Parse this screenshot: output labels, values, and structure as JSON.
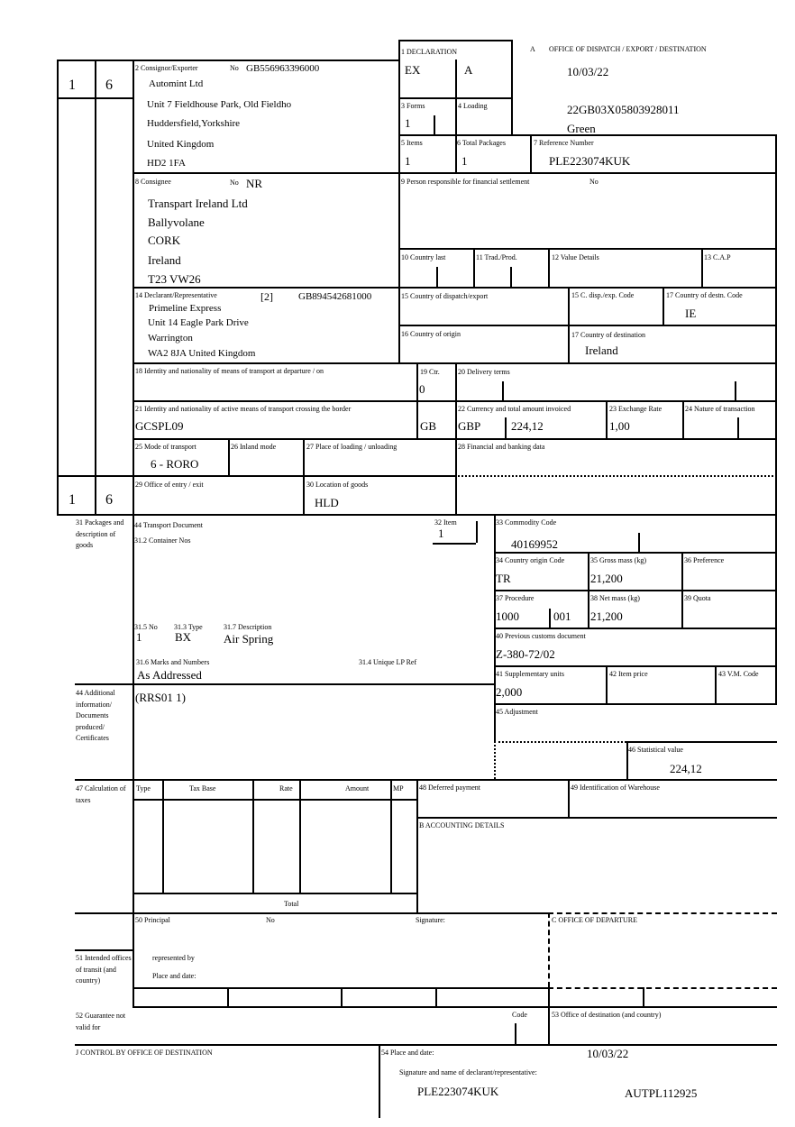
{
  "header": {
    "office_label": "A",
    "office_title": "OFFICE OF DISPATCH / EXPORT / DESTINATION",
    "date": "10/03/22",
    "mrn": "22GB03X05803928011",
    "route": "Green"
  },
  "side": {
    "form_no_1": "1",
    "form_total_1": "6",
    "form_no_2": "1",
    "form_total_2": "6"
  },
  "box1": {
    "label": "1 DECLARATION",
    "type": "EX",
    "subtype": "A"
  },
  "box2": {
    "label": "2 Consignor/Exporter",
    "no_label": "No",
    "no": "GB556963396000",
    "lines": [
      "Automint Ltd",
      "Unit 7 Fieldhouse Park, Old Fieldho",
      "Huddersfield,Yorkshire",
      "United Kingdom",
      "HD2 1FA"
    ]
  },
  "box3": {
    "label": "3 Forms",
    "value": "1"
  },
  "box4": {
    "label": "4 Loading"
  },
  "box5": {
    "label": "5 Items",
    "value": "1"
  },
  "box6": {
    "label": "6 Total Packages",
    "value": "1"
  },
  "box7": {
    "label": "7 Reference Number",
    "value": "PLE223074KUK"
  },
  "box8": {
    "label": "8 Consignee",
    "no_label": "No",
    "no": "NR",
    "lines": [
      "Transpart Ireland Ltd",
      "Ballyvolane",
      "CORK",
      "Ireland",
      "T23 VW26"
    ]
  },
  "box9": {
    "label": "9 Person responsible for financial settlement",
    "no_label": "No"
  },
  "box10": {
    "label": "10 Country last"
  },
  "box11": {
    "label": "11 Trad./Prod."
  },
  "box12": {
    "label": "12 Value Details"
  },
  "box13": {
    "label": "13 C.A.P"
  },
  "box14": {
    "label": "14 Declarant/Representative",
    "status": "[2]",
    "no": "GB894542681000",
    "lines": [
      "Primeline Express",
      "Unit 14 Eagle Park Drive",
      "Warrington",
      "WA2 8JA United Kingdom"
    ]
  },
  "box15": {
    "label": "15 Country of dispatch/export"
  },
  "box15c": {
    "label": "15 C. disp./exp. Code"
  },
  "box17c": {
    "label": "17 Country of destn. Code",
    "value": "IE"
  },
  "box16": {
    "label": "16 Country of origin"
  },
  "box17": {
    "label": "17 Country of destination",
    "value": "Ireland"
  },
  "box18": {
    "label": "18 Identity and nationality of means of transport at departure / on"
  },
  "box19": {
    "label": "19 Ctr.",
    "value": "0"
  },
  "box20": {
    "label": "20 Delivery terms"
  },
  "box21": {
    "label": "21 Identity and nationality of active means of transport crossing the border",
    "value": "GCSPL09",
    "nationality": "GB"
  },
  "box22": {
    "label": "22 Currency and total amount invoiced",
    "currency": "GBP",
    "amount": "224,12"
  },
  "box23": {
    "label": "23 Exchange Rate",
    "value": "1,00"
  },
  "box24": {
    "label": "24 Nature of transaction"
  },
  "box25": {
    "label": "25 Mode of transport",
    "value": "6 - RORO"
  },
  "box26": {
    "label": "26 Inland mode"
  },
  "box27": {
    "label": "27 Place of loading / unloading"
  },
  "box28": {
    "label": "28 Financial and banking data"
  },
  "box29": {
    "label": "29 Office of entry / exit"
  },
  "box30": {
    "label": "30 Location of goods",
    "value": "HLD"
  },
  "box31": {
    "label": "31 Packages and description of goods",
    "transport_doc": "44 Transport Document",
    "container": "31.2 Container Nos",
    "no_label": "31.5 No",
    "no": "1",
    "type_label": "31.3 Type",
    "type": "BX",
    "desc_label": "31.7 Description",
    "desc": "Air Spring",
    "marks_label": "31.6 Marks and Numbers",
    "marks": "As Addressed",
    "lp_label": "31.4 Unique LP Ref"
  },
  "box32": {
    "label": "32 Item",
    "value": "1"
  },
  "box33": {
    "label": "33 Commodity Code",
    "value": "40169952"
  },
  "box34": {
    "label": "34 Country origin Code",
    "value": "TR"
  },
  "box35": {
    "label": "35 Gross mass (kg)",
    "value": "21,200"
  },
  "box36": {
    "label": "36 Preference"
  },
  "box37": {
    "label": "37 Procedure",
    "value": "1000",
    "value2": "001"
  },
  "box38": {
    "label": "38 Net mass (kg)",
    "value": "21,200"
  },
  "box39": {
    "label": "39 Quota"
  },
  "box40": {
    "label": "40 Previous customs document",
    "value": "Z-380-72/02"
  },
  "box41": {
    "label": "41 Supplementary units",
    "value": "2,000"
  },
  "box42": {
    "label": "42 Item price"
  },
  "box43": {
    "label": "43 V.M. Code"
  },
  "box44": {
    "label": "44 Additional information/ Documents produced/ Certificates",
    "value": "(RRS01 1)"
  },
  "box45": {
    "label": "45 Adjustment"
  },
  "box46": {
    "label": "46 Statistical value",
    "value": "224,12"
  },
  "box47": {
    "label": "47 Calculation of taxes",
    "columns": [
      "Type",
      "Tax Base",
      "Rate",
      "Amount",
      "MP"
    ],
    "total_label": "Total"
  },
  "box48": {
    "label": "48 Deferred payment"
  },
  "box49": {
    "label": "49 Identification of Warehouse"
  },
  "boxB": {
    "label": "B ACCOUNTING DETAILS"
  },
  "box50": {
    "label": "50 Principal",
    "no_label": "No",
    "signature_label": "Signature:",
    "represented_label": "represented by",
    "place_label": "Place and date:"
  },
  "boxC": {
    "label": "C OFFICE OF DEPARTURE"
  },
  "box51": {
    "label": "51 Intended offices of transit (and country)"
  },
  "box52": {
    "label": "52 Guarantee not valid for",
    "code_label": "Code"
  },
  "box53": {
    "label": "53 Office of destination (and country)"
  },
  "boxJ": {
    "label": "J CONTROL BY OFFICE OF DESTINATION"
  },
  "box54": {
    "label": "54 Place and date:",
    "date": "10/03/22",
    "signature_label": "Signature and name of declarant/representative:",
    "name": "PLE223074KUK",
    "code": "AUTPL112925"
  }
}
